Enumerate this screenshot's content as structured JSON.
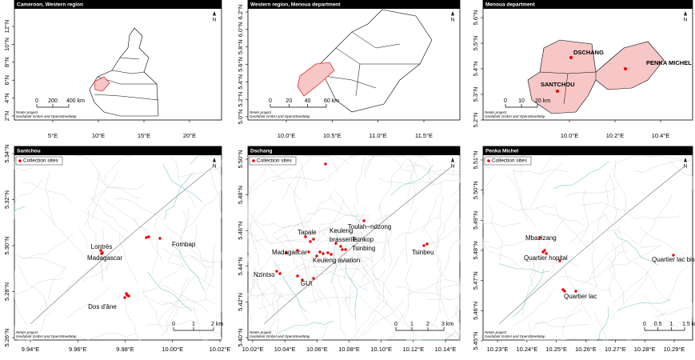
{
  "panels": [
    {
      "title": "Cameroon, Western region",
      "xticks": [
        "5°E",
        "10°E",
        "15°E",
        "20°E"
      ],
      "yticks": [
        "2°N",
        "4°N",
        "6°N",
        "8°N",
        "10°N",
        "12°N"
      ],
      "scale": [
        "0",
        "200",
        "400 km"
      ],
      "credit": [
        "ReMA project",
        "Geofabrik GmbH and OpenStreetMap"
      ],
      "north": "N",
      "places": []
    },
    {
      "title": "Western region, Menoua department",
      "xticks": [
        "10.0°E",
        "10.5°E",
        "11.0°E",
        "11.5°E"
      ],
      "yticks": [
        "5.0°N",
        "5.2°N",
        "5.4°N",
        "5.6°N",
        "5.8°N",
        "6.0°N",
        "6.2°N"
      ],
      "scale": [
        "0",
        "20",
        "40",
        "60 km"
      ],
      "credit": [
        "ReMA project",
        "Geofabrik GmbH and OpenStreetMap"
      ],
      "north": "N",
      "places": []
    },
    {
      "title": "Menoua department",
      "xticks": [
        "10.0°E",
        "10.2°E",
        "10.4°E"
      ],
      "yticks": [
        "5.2°N",
        "5.3°N",
        "5.4°N",
        "5.5°N",
        "5.6°N"
      ],
      "scale": [
        "0",
        "10",
        "20 km"
      ],
      "credit": [
        "ReMA project",
        "Geofabrik GmbH and OpenStreetMap"
      ],
      "north": "N",
      "places": [
        "DSCHANG",
        "PENKA MICHEL",
        "SANTCHOU"
      ]
    },
    {
      "title": "Santchou",
      "legend": "Collection sites",
      "xticks": [
        "9.94°E",
        "9.96°E",
        "9.98°E",
        "10.00°E",
        "10.02°E"
      ],
      "yticks": [
        "5.26°N",
        "5.28°N",
        "5.30°N",
        "5.32°N",
        "5.34°N"
      ],
      "scale": [
        "0",
        "1",
        "2 km"
      ],
      "credit": [
        "ReMA project",
        "Geofabrik GmbH and OpenStreetMap"
      ],
      "north": "N",
      "places": [
        "Lontrès",
        "Madagascar",
        "Fombap",
        "Dos d'âne"
      ]
    },
    {
      "title": "Dschang",
      "legend": "Collection sites",
      "xticks": [
        "10.02°E",
        "10.04°E",
        "10.06°E",
        "10.08°E",
        "10.10°E",
        "10.12°E",
        "10.14°E"
      ],
      "yticks": [
        "5.40°N",
        "5.42°N",
        "5.44°N",
        "5.46°N",
        "5.48°N",
        "5.50°N"
      ],
      "scale": [
        "0",
        "1",
        "2",
        "3 km"
      ],
      "credit": [
        "ReMA project",
        "Geofabrik GmbH and OpenStreetMap"
      ],
      "north": "N",
      "places": [
        "Toulah−ndzong",
        "Tapale",
        "Keuleng",
        "brasserie",
        "Tsinkop",
        "Tsinbing",
        "Madagascar",
        "Keuleng aviation",
        "Tsinbeu",
        "Nzintso",
        "GUI"
      ]
    },
    {
      "title": "Penka Michel",
      "legend": "Collection sites",
      "xticks": [
        "10.23°E",
        "10.24°E",
        "10.25°E",
        "10.26°E",
        "10.27°E",
        "10.28°E",
        "10.29°E"
      ],
      "yticks": [
        "5.45°N",
        "5.46°N",
        "5.47°N",
        "5.48°N",
        "5.49°N",
        "5.50°N",
        "5.51°N"
      ],
      "scale": [
        "0",
        "0.5",
        "1",
        "1.5 km"
      ],
      "credit": [
        "ReMA project",
        "Geofabrik GmbH and OpenStreetMap"
      ],
      "north": "N",
      "places": [
        "Mbazizang",
        "Quartier hopital",
        "Quartier lac bis",
        "Quartier lac"
      ]
    }
  ]
}
